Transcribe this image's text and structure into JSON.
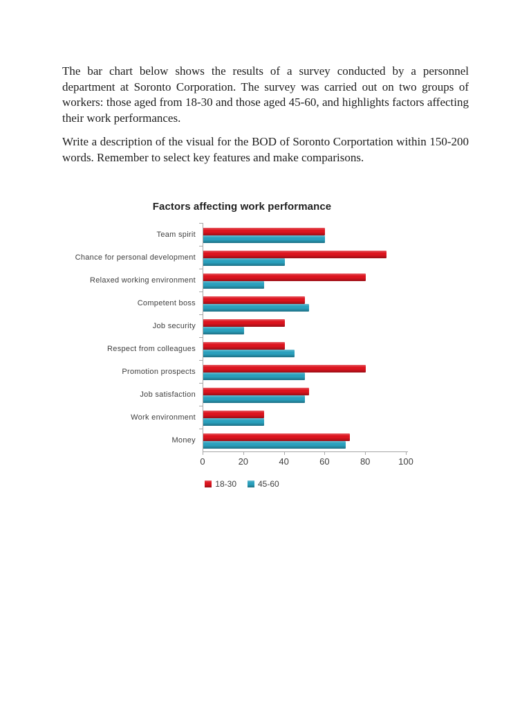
{
  "document": {
    "paragraphs": [
      "The bar chart below shows the results of a survey conducted by a personnel department at Soronto Corporation. The survey was carried out on two groups of workers: those aged from 18-30 and those aged 45-60, and highlights factors affecting their work performances.",
      "Write a description of the visual for the BOD of Soronto Corportation within 150-200 words. Remember to select key features and make comparisons."
    ]
  },
  "chart_data": {
    "type": "bar",
    "orientation": "horizontal",
    "title": "Factors affecting work performance",
    "categories": [
      "Team spirit",
      "Chance for personal development",
      "Relaxed working environment",
      "Competent boss",
      "Job security",
      "Respect from colleagues",
      "Promotion prospects",
      "Job satisfaction",
      "Work environment",
      "Money"
    ],
    "series": [
      {
        "name": "18-30",
        "color": "#dc141e",
        "values": [
          60,
          90,
          80,
          50,
          40,
          40,
          80,
          52,
          30,
          72
        ]
      },
      {
        "name": "45-60",
        "color": "#2aa0bd",
        "values": [
          60,
          40,
          30,
          52,
          20,
          45,
          50,
          50,
          30,
          70
        ]
      }
    ],
    "xlim": [
      0,
      100
    ],
    "x_ticks": [
      0,
      20,
      40,
      60,
      80,
      100
    ],
    "legend_position": "bottom",
    "grid": false,
    "axis_color": "#a6a6a6",
    "label_color": "#3d3d3d"
  }
}
